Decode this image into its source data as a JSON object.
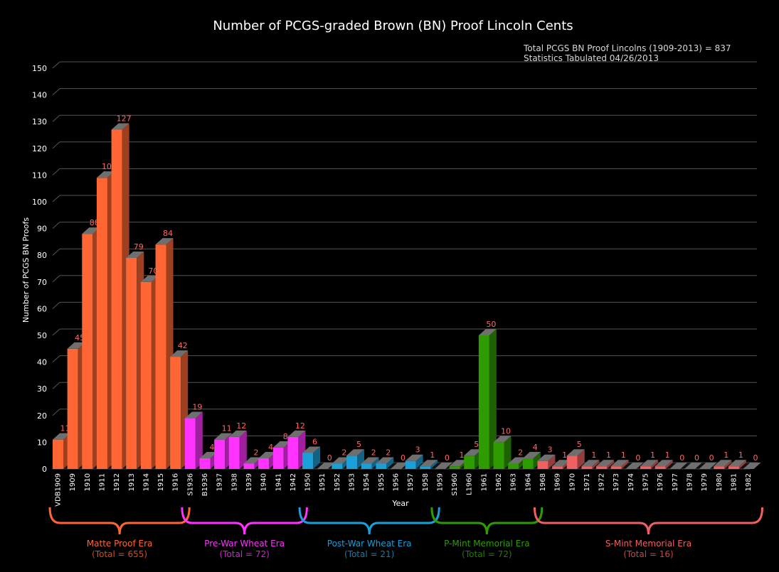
{
  "chart_data": {
    "type": "bar",
    "title": "Number of PCGS-graded Brown (BN) Proof Lincoln Cents",
    "subtitle_lines": [
      "Total PCGS BN Proof Lincolns (1909-2013) = 837",
      "Statistics Tabulated 04/26/2013"
    ],
    "xlabel": "Year",
    "ylabel": "Number of PCGS BN Proofs",
    "ylim": [
      0,
      150
    ],
    "yticks": [
      0,
      10,
      20,
      30,
      40,
      50,
      60,
      70,
      80,
      90,
      100,
      110,
      120,
      130,
      140,
      150
    ],
    "grid": true,
    "categories": [
      "VDB1909",
      "1909",
      "1910",
      "1911",
      "1912",
      "1913",
      "1914",
      "1915",
      "1916",
      "S1936",
      "B1936",
      "1937",
      "1938",
      "1939",
      "1940",
      "1941",
      "1942",
      "1950",
      "1951",
      "1952",
      "1953",
      "1954",
      "1955",
      "1956",
      "1957",
      "1958",
      "1959",
      "S1960",
      "L1960",
      "1961",
      "1962",
      "1963",
      "1964",
      "1968",
      "1969",
      "1970",
      "1971",
      "1972",
      "1973",
      "1974",
      "1975",
      "1976",
      "1977",
      "1978",
      "1979",
      "1980",
      "1981",
      "1982"
    ],
    "values": [
      11,
      45,
      88,
      109,
      127,
      79,
      70,
      84,
      42,
      19,
      4,
      11,
      12,
      2,
      4,
      8,
      12,
      6,
      0,
      2,
      5,
      2,
      2,
      0,
      3,
      1,
      0,
      1,
      5,
      50,
      10,
      2,
      4,
      3,
      1,
      5,
      1,
      1,
      1,
      0,
      1,
      1,
      0,
      0,
      0,
      1,
      1,
      0
    ],
    "eras": [
      {
        "name": "Matte Proof Era",
        "total": "(Total = 655)",
        "color": "#ff6633",
        "from": 0,
        "to": 8
      },
      {
        "name": "Pre-War Wheat Era",
        "total": "(Total = 72)",
        "color": "#ff33ff",
        "from": 9,
        "to": 16
      },
      {
        "name": "Post-War Wheat Era",
        "total": "(Total = 21)",
        "color": "#1a9fd8",
        "from": 17,
        "to": 25
      },
      {
        "name": "P-Mint Memorial Era",
        "total": "(Total = 72)",
        "color": "#2e9c00",
        "from": 26,
        "to": 32
      },
      {
        "name": "S-Mint Memorial Era",
        "total": "(Total = 16)",
        "color": "#f06060",
        "from": 33,
        "to": 47
      }
    ],
    "label_color": "#ff6666",
    "grid_color": "#555555"
  }
}
